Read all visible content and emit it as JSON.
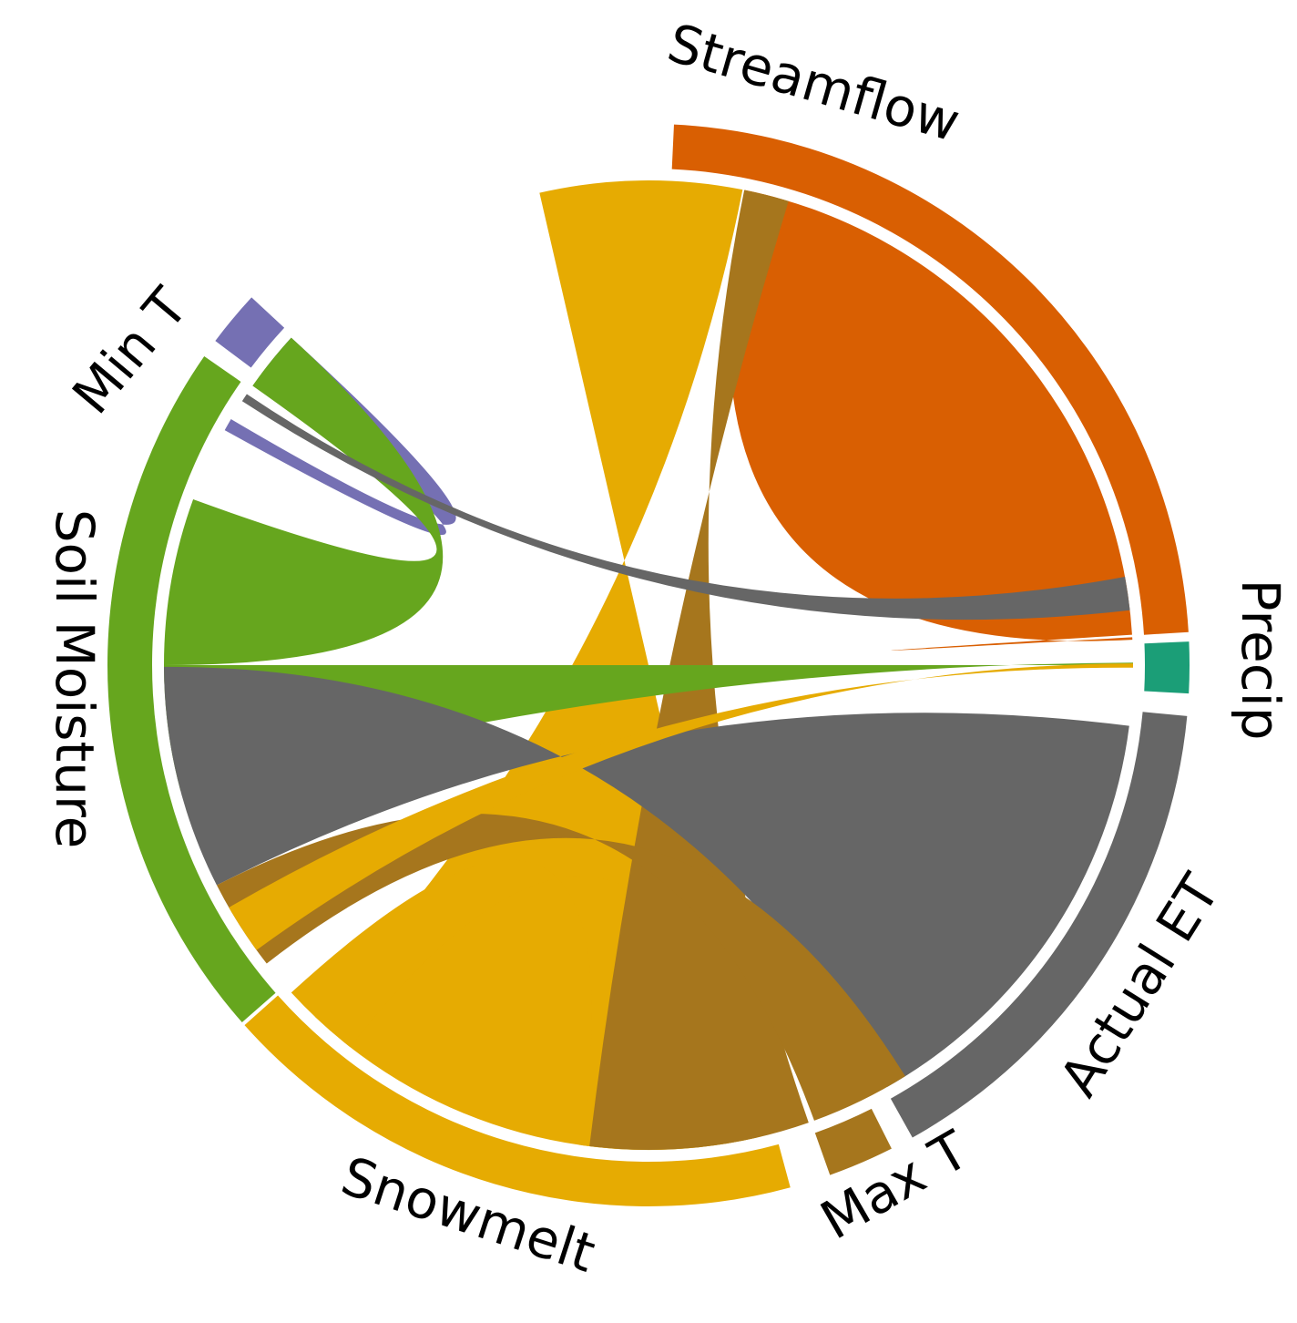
{
  "nodes": [
    {
      "id": "precip",
      "label": "Precip",
      "color": "#1b9e77"
    },
    {
      "id": "streamflow",
      "label": "Streamflow",
      "color": "#d95f02"
    },
    {
      "id": "min_t",
      "label": "Min T",
      "color": "#7570b3"
    },
    {
      "id": "soil_moisture",
      "label": "Soil Moisture",
      "color": "#66a61e"
    },
    {
      "id": "snowmelt",
      "label": "Snowmelt",
      "color": "#e6ab02"
    },
    {
      "id": "max_t",
      "label": "Max T",
      "color": "#a6761d"
    },
    {
      "id": "actual_et",
      "label": "Actual ET",
      "color": "#666666"
    }
  ],
  "node_arc_degrees": {
    "precip": [
      -2.5,
      3.0
    ],
    "streamflow": [
      -87.3,
      -3.5
    ],
    "min_t": [
      -143.2,
      -137.2
    ],
    "soil_moisture": [
      -221.3,
      -145.2
    ],
    "snowmelt": [
      -285.2,
      -221.7
    ],
    "max_t": [
      -296.7,
      -289.6
    ],
    "actual_et": [
      -354.6,
      -299.2
    ]
  }
}
